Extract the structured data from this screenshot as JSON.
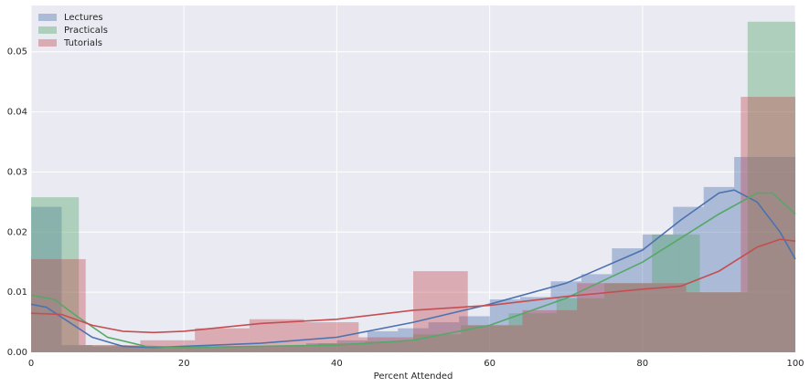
{
  "chart_data": {
    "type": "histogram",
    "xlabel": "Percent Attended",
    "xlim": [
      0,
      100
    ],
    "xticks": [
      0,
      20,
      40,
      60,
      80,
      100
    ],
    "ylim": [
      0,
      0.0577
    ],
    "yticks": [
      {
        "value": 0,
        "label": "0.00"
      },
      0.01,
      0.02,
      0.03,
      0.04,
      0.05
    ],
    "grid": true,
    "legend": "upper left",
    "bar_alpha": 0.4,
    "series": [
      {
        "name": "Lectures",
        "color": "#4c72b0",
        "bins": [
          0,
          4,
          8,
          12,
          16,
          20,
          24,
          28,
          32,
          36,
          40,
          44,
          48,
          52,
          56,
          60,
          64,
          68,
          72,
          76,
          80,
          84,
          88,
          92,
          96,
          100
        ],
        "values": [
          0.0242,
          0.0012,
          0.001,
          0.001,
          0.0008,
          0.0008,
          0.001,
          0.001,
          0.001,
          0.0015,
          0.002,
          0.0035,
          0.004,
          0.005,
          0.006,
          0.0088,
          0.0092,
          0.0118,
          0.013,
          0.0173,
          0.0196,
          0.0242,
          0.0275,
          0.0325,
          0.0325
        ],
        "kde": {
          "x": [
            0,
            2,
            5,
            8,
            12,
            16,
            20,
            30,
            40,
            50,
            60,
            70,
            80,
            85,
            90,
            92,
            95,
            98,
            100
          ],
          "y": [
            0.008,
            0.0075,
            0.005,
            0.0025,
            0.001,
            0.0008,
            0.001,
            0.0015,
            0.0025,
            0.005,
            0.008,
            0.0115,
            0.017,
            0.022,
            0.0265,
            0.027,
            0.025,
            0.02,
            0.0155
          ]
        }
      },
      {
        "name": "Practicals",
        "color": "#55a868",
        "bins": [
          0,
          6.25,
          12.5,
          18.75,
          25,
          31.25,
          37.5,
          43.75,
          50,
          56.25,
          62.5,
          68.75,
          75,
          81.25,
          87.5,
          93.75,
          100
        ],
        "values": [
          0.0258,
          0.0012,
          0.001,
          0.0008,
          0.001,
          0.001,
          0.0015,
          0.0018,
          0.003,
          0.0045,
          0.0065,
          0.009,
          0.0115,
          0.0196,
          0.01,
          0.055
        ],
        "kde": {
          "x": [
            0,
            3,
            6,
            10,
            15,
            20,
            30,
            40,
            50,
            60,
            70,
            80,
            90,
            95,
            97,
            100
          ],
          "y": [
            0.0095,
            0.0088,
            0.006,
            0.0025,
            0.001,
            0.0008,
            0.001,
            0.0012,
            0.002,
            0.0045,
            0.009,
            0.015,
            0.023,
            0.0265,
            0.0265,
            0.023
          ]
        }
      },
      {
        "name": "Tutorials",
        "color": "#c44e52",
        "bins": [
          0,
          7.14,
          14.29,
          21.43,
          28.57,
          35.71,
          42.86,
          50,
          57.14,
          64.29,
          71.43,
          78.57,
          85.71,
          92.86,
          100
        ],
        "values": [
          0.0155,
          0.0012,
          0.002,
          0.004,
          0.0055,
          0.005,
          0.0025,
          0.0135,
          0.0045,
          0.007,
          0.0115,
          0.0115,
          0.01,
          0.0425
        ],
        "kde": {
          "x": [
            0,
            4,
            8,
            12,
            16,
            20,
            30,
            40,
            50,
            60,
            70,
            80,
            85,
            90,
            95,
            98,
            100
          ],
          "y": [
            0.0065,
            0.0063,
            0.0045,
            0.0035,
            0.0033,
            0.0035,
            0.0048,
            0.0055,
            0.007,
            0.0078,
            0.0093,
            0.0105,
            0.011,
            0.0135,
            0.0175,
            0.0188,
            0.0185
          ]
        }
      }
    ]
  }
}
